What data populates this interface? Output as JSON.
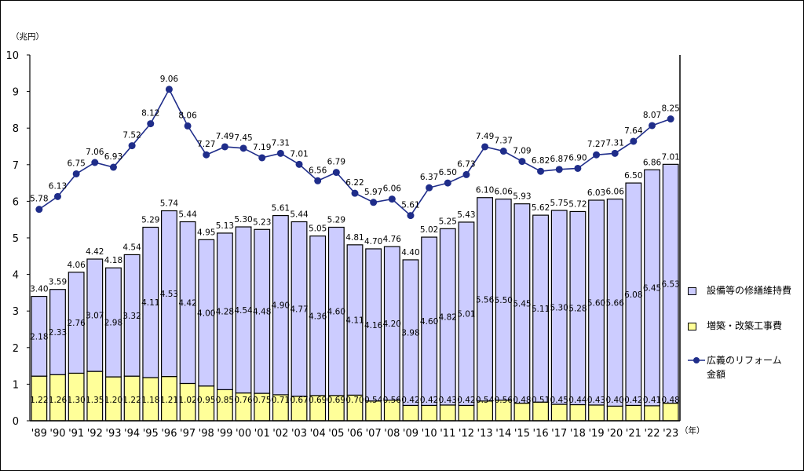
{
  "chart_data": {
    "type": "bar",
    "stacked": true,
    "yunit": "（兆円）",
    "xunit": "（年）",
    "ylim": [
      0,
      10
    ],
    "yticks": [
      0,
      1,
      2,
      3,
      4,
      5,
      6,
      7,
      8,
      9,
      10
    ],
    "grid": false,
    "legend_position": "right",
    "categories": [
      "'89",
      "'90",
      "'91",
      "'92",
      "'93",
      "'94",
      "'95",
      "'96",
      "'97",
      "'98",
      "'99",
      "'00",
      "'01",
      "'02",
      "'03",
      "'04",
      "'05",
      "'06",
      "'07",
      "'08",
      "'09",
      "'10",
      "'11",
      "'12",
      "'13",
      "'14",
      "'15",
      "'16",
      "'17",
      "'18",
      "'19",
      "'20",
      "'21",
      "'22",
      "'23"
    ],
    "series": [
      {
        "name": "増築・改築工事費",
        "type": "bar",
        "color": "#ffff99",
        "values": [
          1.22,
          1.26,
          1.3,
          1.35,
          1.2,
          1.22,
          1.18,
          1.21,
          1.02,
          0.95,
          0.85,
          0.76,
          0.75,
          0.71,
          0.67,
          0.69,
          0.69,
          0.7,
          0.54,
          0.56,
          0.42,
          0.42,
          0.43,
          0.42,
          0.54,
          0.56,
          0.48,
          0.51,
          0.45,
          0.44,
          0.43,
          0.4,
          0.42,
          0.41,
          0.48
        ]
      },
      {
        "name": "設備等の修繕維持費",
        "type": "bar",
        "color": "#ccccff",
        "values": [
          2.18,
          2.33,
          2.76,
          3.07,
          2.98,
          3.32,
          4.11,
          4.53,
          4.42,
          4.0,
          4.28,
          4.54,
          4.48,
          4.9,
          4.77,
          4.36,
          4.6,
          4.11,
          4.16,
          4.2,
          3.98,
          4.6,
          4.82,
          5.01,
          5.56,
          5.5,
          5.45,
          5.11,
          5.3,
          5.28,
          5.6,
          5.66,
          6.08,
          6.45,
          6.53
        ]
      },
      {
        "name": "広義のリフォーム金額",
        "type": "line",
        "color": "#1f2d8a",
        "values": [
          5.78,
          6.13,
          6.75,
          7.06,
          6.93,
          7.52,
          8.12,
          9.06,
          8.06,
          7.27,
          7.49,
          7.45,
          7.19,
          7.31,
          7.01,
          6.56,
          6.79,
          6.22,
          5.97,
          6.06,
          5.61,
          6.37,
          6.5,
          6.73,
          7.49,
          7.37,
          7.09,
          6.82,
          6.87,
          6.9,
          7.27,
          7.31,
          7.64,
          8.07,
          8.25
        ]
      }
    ],
    "bar_totals": [
      3.4,
      3.59,
      4.06,
      4.42,
      4.18,
      4.54,
      5.29,
      5.74,
      5.44,
      4.95,
      5.13,
      5.3,
      5.23,
      5.61,
      5.44,
      5.05,
      5.29,
      4.81,
      4.7,
      4.76,
      4.4,
      5.02,
      5.25,
      5.43,
      6.1,
      6.06,
      5.93,
      5.62,
      5.75,
      5.72,
      6.03,
      6.06,
      6.5,
      6.86,
      7.01
    ]
  }
}
